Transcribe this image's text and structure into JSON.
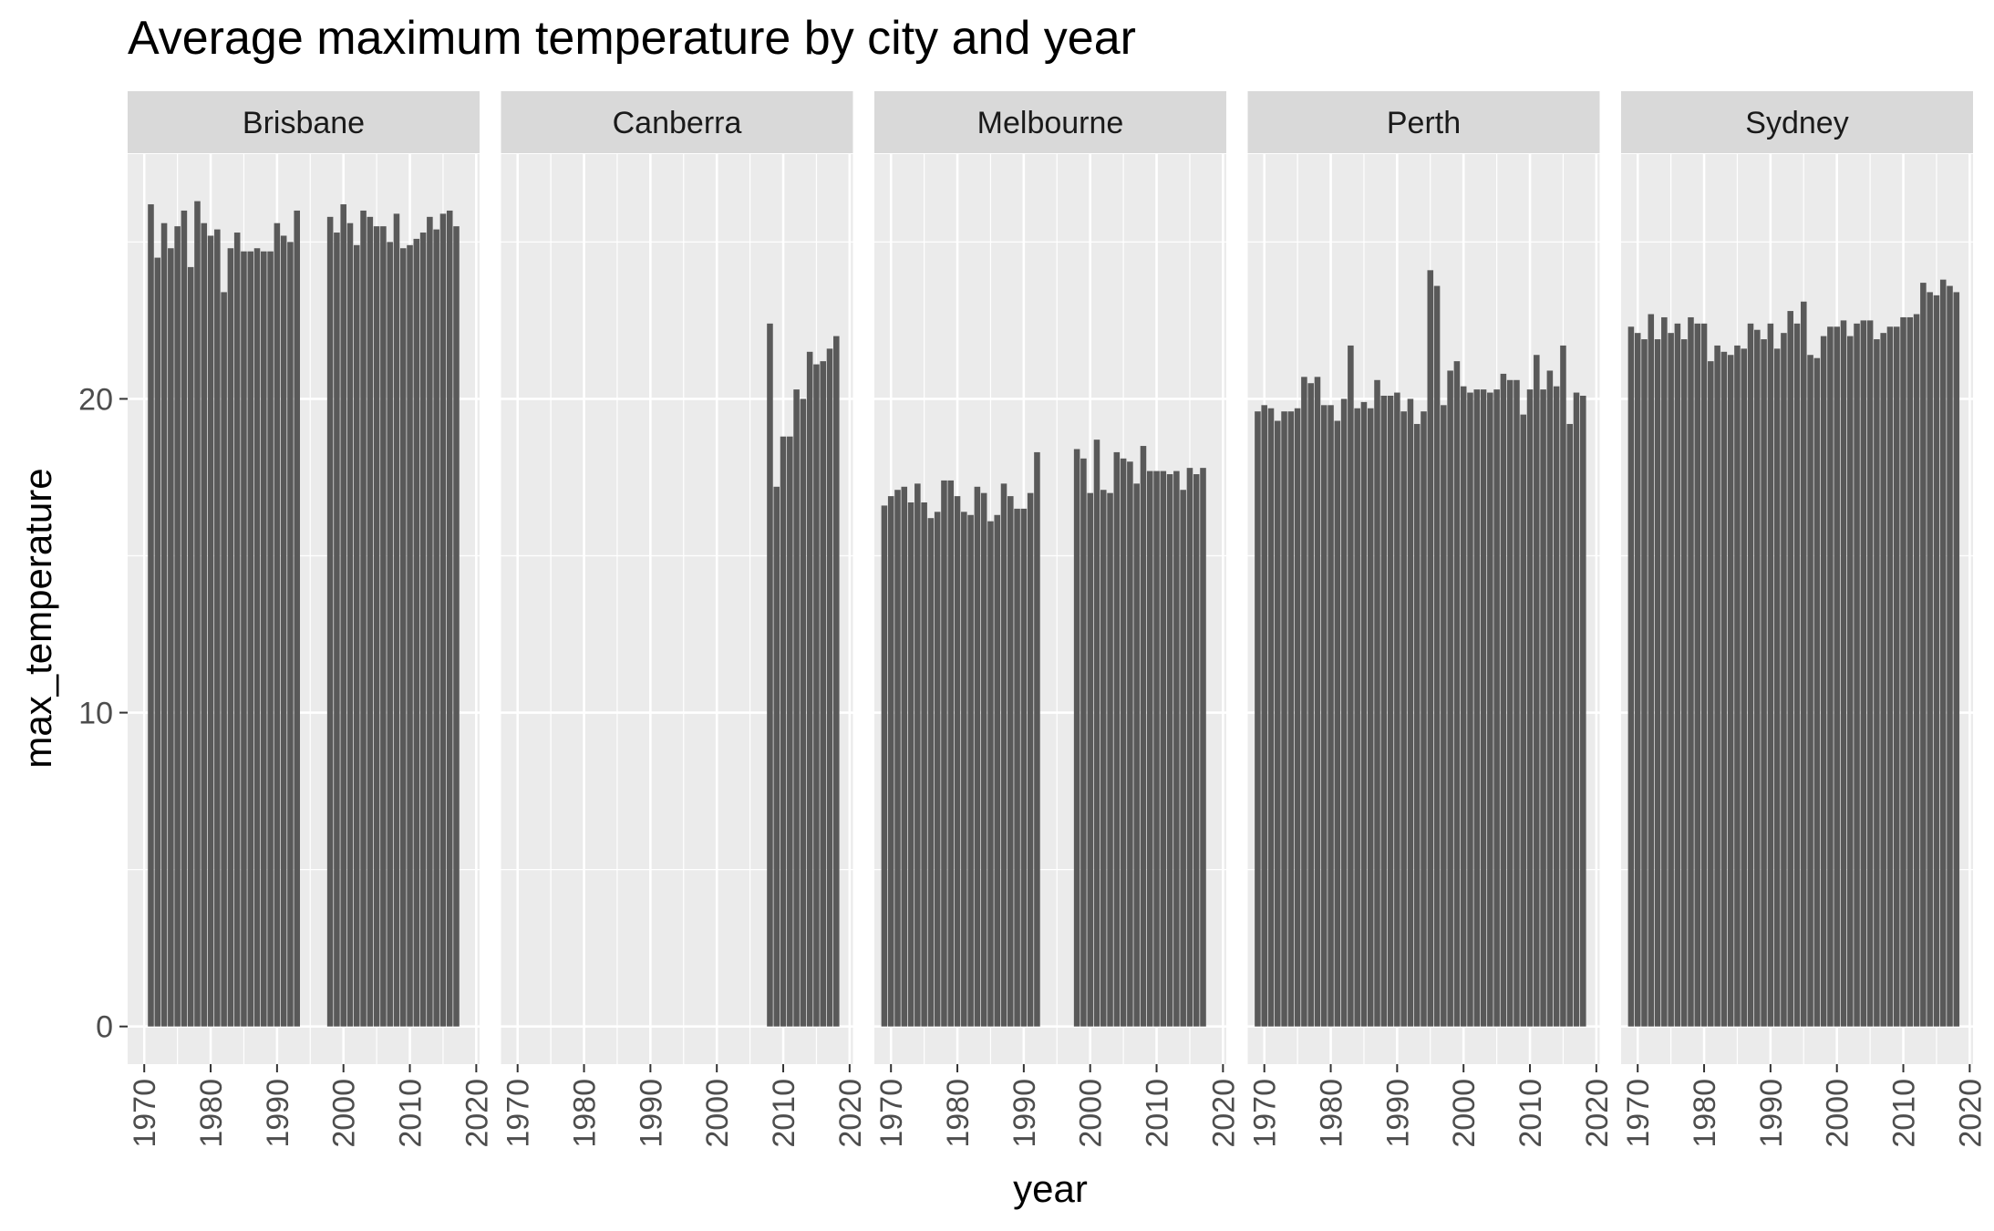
{
  "chart_data": {
    "type": "bar",
    "title": "Average maximum temperature by city and year",
    "xlabel": "year",
    "ylabel": "max_temperature",
    "xlim": [
      1967.5,
      2020.5
    ],
    "ylim": [
      -1.2,
      27.8
    ],
    "x_ticks": [
      1970,
      1980,
      1990,
      2000,
      2010,
      2020
    ],
    "y_ticks": [
      0,
      10,
      20
    ],
    "grid": true,
    "facets": [
      {
        "name": "Brisbane",
        "points": [
          [
            1971,
            26.2
          ],
          [
            1972,
            24.5
          ],
          [
            1973,
            25.6
          ],
          [
            1974,
            24.8
          ],
          [
            1975,
            25.5
          ],
          [
            1976,
            26.0
          ],
          [
            1977,
            24.2
          ],
          [
            1978,
            26.3
          ],
          [
            1979,
            25.6
          ],
          [
            1980,
            25.2
          ],
          [
            1981,
            25.4
          ],
          [
            1982,
            23.4
          ],
          [
            1983,
            24.8
          ],
          [
            1984,
            25.3
          ],
          [
            1985,
            24.7
          ],
          [
            1986,
            24.7
          ],
          [
            1987,
            24.8
          ],
          [
            1988,
            24.7
          ],
          [
            1989,
            24.7
          ],
          [
            1990,
            25.6
          ],
          [
            1991,
            25.2
          ],
          [
            1992,
            25.0
          ],
          [
            1993,
            26.0
          ],
          [
            1998,
            25.8
          ],
          [
            1999,
            25.3
          ],
          [
            2000,
            26.2
          ],
          [
            2001,
            25.6
          ],
          [
            2002,
            24.9
          ],
          [
            2003,
            26.0
          ],
          [
            2004,
            25.8
          ],
          [
            2005,
            25.5
          ],
          [
            2006,
            25.5
          ],
          [
            2007,
            25.0
          ],
          [
            2008,
            25.9
          ],
          [
            2009,
            24.8
          ],
          [
            2010,
            24.9
          ],
          [
            2011,
            25.1
          ],
          [
            2012,
            25.3
          ],
          [
            2013,
            25.8
          ],
          [
            2014,
            25.4
          ],
          [
            2015,
            25.9
          ],
          [
            2016,
            26.0
          ],
          [
            2017,
            25.5
          ]
        ]
      },
      {
        "name": "Canberra",
        "points": [
          [
            2008,
            22.4
          ],
          [
            2009,
            17.2
          ],
          [
            2010,
            18.8
          ],
          [
            2011,
            18.8
          ],
          [
            2012,
            20.3
          ],
          [
            2013,
            20.0
          ],
          [
            2014,
            21.5
          ],
          [
            2015,
            21.1
          ],
          [
            2016,
            21.2
          ],
          [
            2017,
            21.6
          ],
          [
            2018,
            22.0
          ]
        ]
      },
      {
        "name": "Melbourne",
        "points": [
          [
            1969,
            16.6
          ],
          [
            1970,
            16.9
          ],
          [
            1971,
            17.1
          ],
          [
            1972,
            17.2
          ],
          [
            1973,
            16.7
          ],
          [
            1974,
            17.3
          ],
          [
            1975,
            16.7
          ],
          [
            1976,
            16.2
          ],
          [
            1977,
            16.4
          ],
          [
            1978,
            17.4
          ],
          [
            1979,
            17.4
          ],
          [
            1980,
            16.9
          ],
          [
            1981,
            16.4
          ],
          [
            1982,
            16.3
          ],
          [
            1983,
            17.2
          ],
          [
            1984,
            17.0
          ],
          [
            1985,
            16.1
          ],
          [
            1986,
            16.3
          ],
          [
            1987,
            17.3
          ],
          [
            1988,
            16.9
          ],
          [
            1989,
            16.5
          ],
          [
            1990,
            16.5
          ],
          [
            1991,
            17.0
          ],
          [
            1992,
            18.3
          ],
          [
            1998,
            18.4
          ],
          [
            1999,
            18.1
          ],
          [
            2000,
            17.0
          ],
          [
            2001,
            18.7
          ],
          [
            2002,
            17.1
          ],
          [
            2003,
            17.0
          ],
          [
            2004,
            18.3
          ],
          [
            2005,
            18.1
          ],
          [
            2006,
            18.0
          ],
          [
            2007,
            17.3
          ],
          [
            2008,
            18.5
          ],
          [
            2009,
            17.7
          ],
          [
            2010,
            17.7
          ],
          [
            2011,
            17.7
          ],
          [
            2012,
            17.6
          ],
          [
            2013,
            17.7
          ],
          [
            2014,
            17.1
          ],
          [
            2015,
            17.8
          ],
          [
            2016,
            17.6
          ],
          [
            2017,
            17.8
          ]
        ]
      },
      {
        "name": "Perth",
        "points": [
          [
            1969,
            19.6
          ],
          [
            1970,
            19.8
          ],
          [
            1971,
            19.7
          ],
          [
            1972,
            19.3
          ],
          [
            1973,
            19.6
          ],
          [
            1974,
            19.6
          ],
          [
            1975,
            19.7
          ],
          [
            1976,
            20.7
          ],
          [
            1977,
            20.5
          ],
          [
            1978,
            20.7
          ],
          [
            1979,
            19.8
          ],
          [
            1980,
            19.8
          ],
          [
            1981,
            19.3
          ],
          [
            1982,
            20.0
          ],
          [
            1983,
            21.7
          ],
          [
            1984,
            19.7
          ],
          [
            1985,
            19.9
          ],
          [
            1986,
            19.7
          ],
          [
            1987,
            20.6
          ],
          [
            1988,
            20.1
          ],
          [
            1989,
            20.1
          ],
          [
            1990,
            20.2
          ],
          [
            1991,
            19.6
          ],
          [
            1992,
            20.0
          ],
          [
            1993,
            19.2
          ],
          [
            1994,
            19.6
          ],
          [
            1995,
            24.1
          ],
          [
            1996,
            23.6
          ],
          [
            1997,
            19.8
          ],
          [
            1998,
            20.9
          ],
          [
            1999,
            21.2
          ],
          [
            2000,
            20.4
          ],
          [
            2001,
            20.2
          ],
          [
            2002,
            20.3
          ],
          [
            2003,
            20.3
          ],
          [
            2004,
            20.2
          ],
          [
            2005,
            20.3
          ],
          [
            2006,
            20.8
          ],
          [
            2007,
            20.6
          ],
          [
            2008,
            20.6
          ],
          [
            2009,
            19.5
          ],
          [
            2010,
            20.3
          ],
          [
            2011,
            21.4
          ],
          [
            2012,
            20.3
          ],
          [
            2013,
            20.9
          ],
          [
            2014,
            20.4
          ],
          [
            2015,
            21.7
          ],
          [
            2016,
            19.2
          ],
          [
            2017,
            20.2
          ],
          [
            2018,
            20.1
          ]
        ]
      },
      {
        "name": "Sydney",
        "points": [
          [
            1969,
            22.3
          ],
          [
            1970,
            22.1
          ],
          [
            1971,
            21.9
          ],
          [
            1972,
            22.7
          ],
          [
            1973,
            21.9
          ],
          [
            1974,
            22.6
          ],
          [
            1975,
            22.1
          ],
          [
            1976,
            22.4
          ],
          [
            1977,
            21.9
          ],
          [
            1978,
            22.6
          ],
          [
            1979,
            22.4
          ],
          [
            1980,
            22.4
          ],
          [
            1981,
            21.2
          ],
          [
            1982,
            21.7
          ],
          [
            1983,
            21.5
          ],
          [
            1984,
            21.4
          ],
          [
            1985,
            21.7
          ],
          [
            1986,
            21.6
          ],
          [
            1987,
            22.4
          ],
          [
            1988,
            22.2
          ],
          [
            1989,
            21.9
          ],
          [
            1990,
            22.4
          ],
          [
            1991,
            21.6
          ],
          [
            1992,
            22.1
          ],
          [
            1993,
            22.8
          ],
          [
            1994,
            22.4
          ],
          [
            1995,
            23.1
          ],
          [
            1996,
            21.4
          ],
          [
            1997,
            21.3
          ],
          [
            1998,
            22.0
          ],
          [
            1999,
            22.3
          ],
          [
            2000,
            22.3
          ],
          [
            2001,
            22.5
          ],
          [
            2002,
            22.0
          ],
          [
            2003,
            22.4
          ],
          [
            2004,
            22.5
          ],
          [
            2005,
            22.5
          ],
          [
            2006,
            21.9
          ],
          [
            2007,
            22.1
          ],
          [
            2008,
            22.3
          ],
          [
            2009,
            22.3
          ],
          [
            2010,
            22.6
          ],
          [
            2011,
            22.6
          ],
          [
            2012,
            22.7
          ],
          [
            2013,
            23.7
          ],
          [
            2014,
            23.4
          ],
          [
            2015,
            23.3
          ],
          [
            2016,
            23.8
          ],
          [
            2017,
            23.6
          ],
          [
            2018,
            23.4
          ]
        ]
      }
    ]
  }
}
